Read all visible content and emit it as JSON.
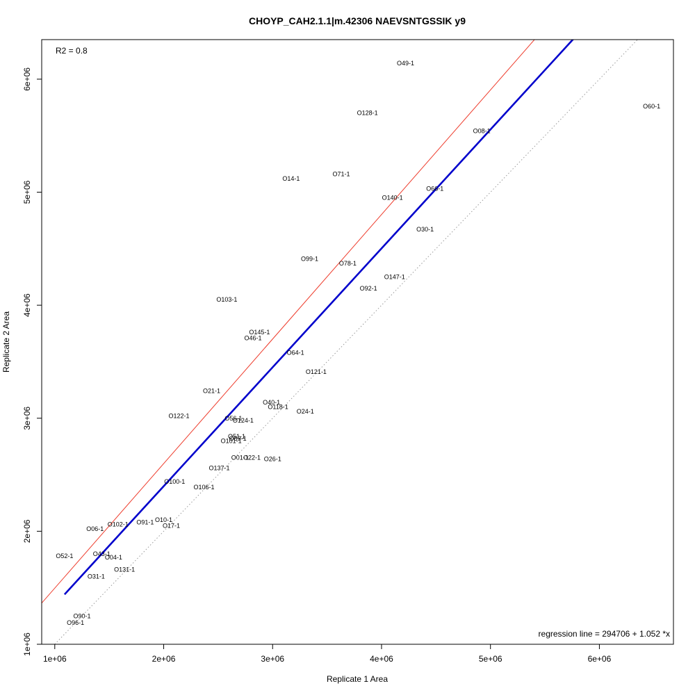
{
  "chart_data": {
    "type": "scatter",
    "title": "CHOYP_CAH2.1.1|m.42306 NAEVSNTGSSIK y9",
    "xlabel": "Replicate 1 Area",
    "ylabel": "Replicate 2 Area",
    "xlim": [
      880000,
      6680000
    ],
    "ylim": [
      1000000,
      6350000
    ],
    "x_ticks": [
      {
        "value": 1000000,
        "label": "1e+06"
      },
      {
        "value": 2000000,
        "label": "2e+06"
      },
      {
        "value": 3000000,
        "label": "3e+06"
      },
      {
        "value": 4000000,
        "label": "4e+06"
      },
      {
        "value": 5000000,
        "label": "5e+06"
      },
      {
        "value": 6000000,
        "label": "6e+06"
      }
    ],
    "y_ticks": [
      {
        "value": 1000000,
        "label": "1e+06"
      },
      {
        "value": 2000000,
        "label": "2e+06"
      },
      {
        "value": 3000000,
        "label": "3e+06"
      },
      {
        "value": 4000000,
        "label": "4e+06"
      },
      {
        "value": 5000000,
        "label": "5e+06"
      },
      {
        "value": 6000000,
        "label": "6e+06"
      }
    ],
    "r2_text": "R2 = 0.8",
    "regression_text": "regression line = 294706 + 1.052 *x",
    "lines": [
      {
        "kind": "identity",
        "color": "#999999",
        "style": "dotted",
        "intercept": 0,
        "slope": 1
      },
      {
        "kind": "regression",
        "color": "#0000cc",
        "style": "solid",
        "intercept": 294706,
        "slope": 1.052,
        "x_range": [
          1090000,
          6060000
        ]
      },
      {
        "kind": "reference",
        "color": "#ee3b2b",
        "style": "solid",
        "intercept": 394706,
        "slope": 1.102
      }
    ],
    "points": [
      {
        "label": "O49-1",
        "x": 4220000,
        "y": 6140000
      },
      {
        "label": "O60-1",
        "x": 6480000,
        "y": 5760000
      },
      {
        "label": "O128-1",
        "x": 3870000,
        "y": 5700000
      },
      {
        "label": "O08-1",
        "x": 4920000,
        "y": 5540000
      },
      {
        "label": "O71-1",
        "x": 3630000,
        "y": 5160000
      },
      {
        "label": "O14-1",
        "x": 3170000,
        "y": 5120000
      },
      {
        "label": "O66-1",
        "x": 4490000,
        "y": 5030000
      },
      {
        "label": "O140-1",
        "x": 4100000,
        "y": 4950000
      },
      {
        "label": "O30-1",
        "x": 4400000,
        "y": 4670000
      },
      {
        "label": "O99-1",
        "x": 3340000,
        "y": 4410000
      },
      {
        "label": "O78-1",
        "x": 3690000,
        "y": 4370000
      },
      {
        "label": "O147-1",
        "x": 4120000,
        "y": 4250000
      },
      {
        "label": "O92-1",
        "x": 3880000,
        "y": 4150000
      },
      {
        "label": "O103-1",
        "x": 2580000,
        "y": 4050000
      },
      {
        "label": "O145-1",
        "x": 2880000,
        "y": 3760000
      },
      {
        "label": "O46-1",
        "x": 2820000,
        "y": 3710000
      },
      {
        "label": "O64-1",
        "x": 3210000,
        "y": 3580000
      },
      {
        "label": "O121-1",
        "x": 3400000,
        "y": 3410000
      },
      {
        "label": "O21-1",
        "x": 2440000,
        "y": 3240000
      },
      {
        "label": "O40-1",
        "x": 2990000,
        "y": 3140000
      },
      {
        "label": "O118-1",
        "x": 3050000,
        "y": 3100000
      },
      {
        "label": "O24-1",
        "x": 3300000,
        "y": 3060000
      },
      {
        "label": "O122-1",
        "x": 2140000,
        "y": 3020000
      },
      {
        "label": "O56-1",
        "x": 2640000,
        "y": 3000000
      },
      {
        "label": "O124-1",
        "x": 2730000,
        "y": 2980000
      },
      {
        "label": "O51-1",
        "x": 2670000,
        "y": 2840000
      },
      {
        "label": "O89-1",
        "x": 2680000,
        "y": 2820000
      },
      {
        "label": "O101-1",
        "x": 2620000,
        "y": 2800000
      },
      {
        "label": "O01-1",
        "x": 2700000,
        "y": 2650000
      },
      {
        "label": "O22-1",
        "x": 2810000,
        "y": 2650000
      },
      {
        "label": "O26-1",
        "x": 3000000,
        "y": 2640000
      },
      {
        "label": "O137-1",
        "x": 2510000,
        "y": 2560000
      },
      {
        "label": "O100-1",
        "x": 2100000,
        "y": 2440000
      },
      {
        "label": "O106-1",
        "x": 2370000,
        "y": 2390000
      },
      {
        "label": "O102-1",
        "x": 1580000,
        "y": 2060000
      },
      {
        "label": "O91-1",
        "x": 1830000,
        "y": 2080000
      },
      {
        "label": "O10-1",
        "x": 2000000,
        "y": 2100000
      },
      {
        "label": "O17-1",
        "x": 2070000,
        "y": 2050000
      },
      {
        "label": "O06-1",
        "x": 1370000,
        "y": 2020000
      },
      {
        "label": "O52-1",
        "x": 1090000,
        "y": 1780000
      },
      {
        "label": "O43-1",
        "x": 1430000,
        "y": 1800000
      },
      {
        "label": "O04-1",
        "x": 1540000,
        "y": 1770000
      },
      {
        "label": "O131-1",
        "x": 1640000,
        "y": 1660000
      },
      {
        "label": "O31-1",
        "x": 1380000,
        "y": 1600000
      },
      {
        "label": "O90-1",
        "x": 1250000,
        "y": 1250000
      },
      {
        "label": "O96-1",
        "x": 1190000,
        "y": 1190000
      }
    ]
  }
}
